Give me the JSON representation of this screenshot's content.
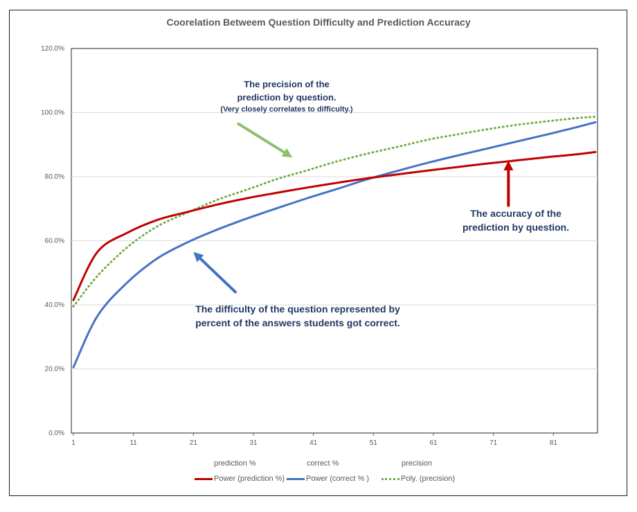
{
  "chart_data": {
    "type": "line",
    "title": "Coorelation Betweem Question Difficulty and Prediction Accuracy",
    "xlabel": "",
    "ylabel": "",
    "xlim": [
      1,
      88
    ],
    "ylim": [
      0,
      120
    ],
    "x_ticks": [
      "1",
      "11",
      "21",
      "31",
      "41",
      "51",
      "61",
      "71",
      "81"
    ],
    "x_tick_values": [
      1,
      11,
      21,
      31,
      41,
      51,
      61,
      71,
      81
    ],
    "y_ticks": [
      "0.0%",
      "20.0%",
      "40.0%",
      "60.0%",
      "80.0%",
      "100.0%",
      "120.0%"
    ],
    "y_tick_values": [
      0,
      20,
      40,
      60,
      80,
      100,
      120
    ],
    "gridlines": true,
    "x": [
      1,
      5,
      10,
      15,
      20,
      25,
      30,
      35,
      40,
      45,
      50,
      55,
      60,
      65,
      70,
      75,
      80,
      85,
      88
    ],
    "series": [
      {
        "name": "Power (prediction %)",
        "color": "#c00000",
        "dash": "solid",
        "values": [
          41.5,
          56.5,
          62.5,
          66.5,
          69.0,
          71.3,
          73.3,
          75.0,
          76.6,
          78.1,
          79.5,
          80.7,
          81.9,
          83.0,
          84.1,
          85.1,
          86.1,
          87.0,
          87.7
        ]
      },
      {
        "name": "Power (correct % )",
        "color": "#4472c4",
        "dash": "solid",
        "values": [
          20.5,
          36.5,
          47.0,
          54.5,
          59.5,
          63.5,
          67.0,
          70.2,
          73.3,
          76.2,
          79.2,
          81.8,
          84.3,
          86.6,
          88.8,
          91.0,
          93.2,
          95.5,
          97.0
        ]
      },
      {
        "name": "Poly. (precision)",
        "color": "#70ad47",
        "dash": "dotted",
        "values": [
          39.5,
          49.0,
          58.0,
          64.5,
          68.8,
          72.8,
          76.0,
          79.3,
          82.0,
          84.8,
          87.2,
          89.3,
          91.5,
          93.2,
          94.8,
          96.2,
          97.3,
          98.3,
          98.7
        ]
      }
    ],
    "annotations": [
      {
        "lines": [
          "The precision of the",
          "prediction  by question."
        ],
        "sub": "(Very closely correlates to difficulty.)",
        "arrow_color": "#8fbf6a",
        "arrow_from": [
          28.5,
          96.5
        ],
        "arrow_to": [
          37.5,
          86.0
        ]
      },
      {
        "lines": [
          "The accuracy of the",
          "prediction  by question."
        ],
        "sub": "",
        "arrow_color": "#c00000",
        "arrow_from": [
          73.5,
          71.0
        ],
        "arrow_to": [
          73.5,
          85.0
        ]
      },
      {
        "lines": [
          "The difficulty of the question represented by",
          "percent of the answers students got correct."
        ],
        "sub": "",
        "arrow_color": "#4472c4",
        "arrow_from": [
          28.0,
          44.0
        ],
        "arrow_to": [
          21.0,
          56.5
        ]
      }
    ],
    "legend_position": "bottom",
    "legend_names": [
      "prediction %",
      "correct %",
      "precision"
    ]
  }
}
